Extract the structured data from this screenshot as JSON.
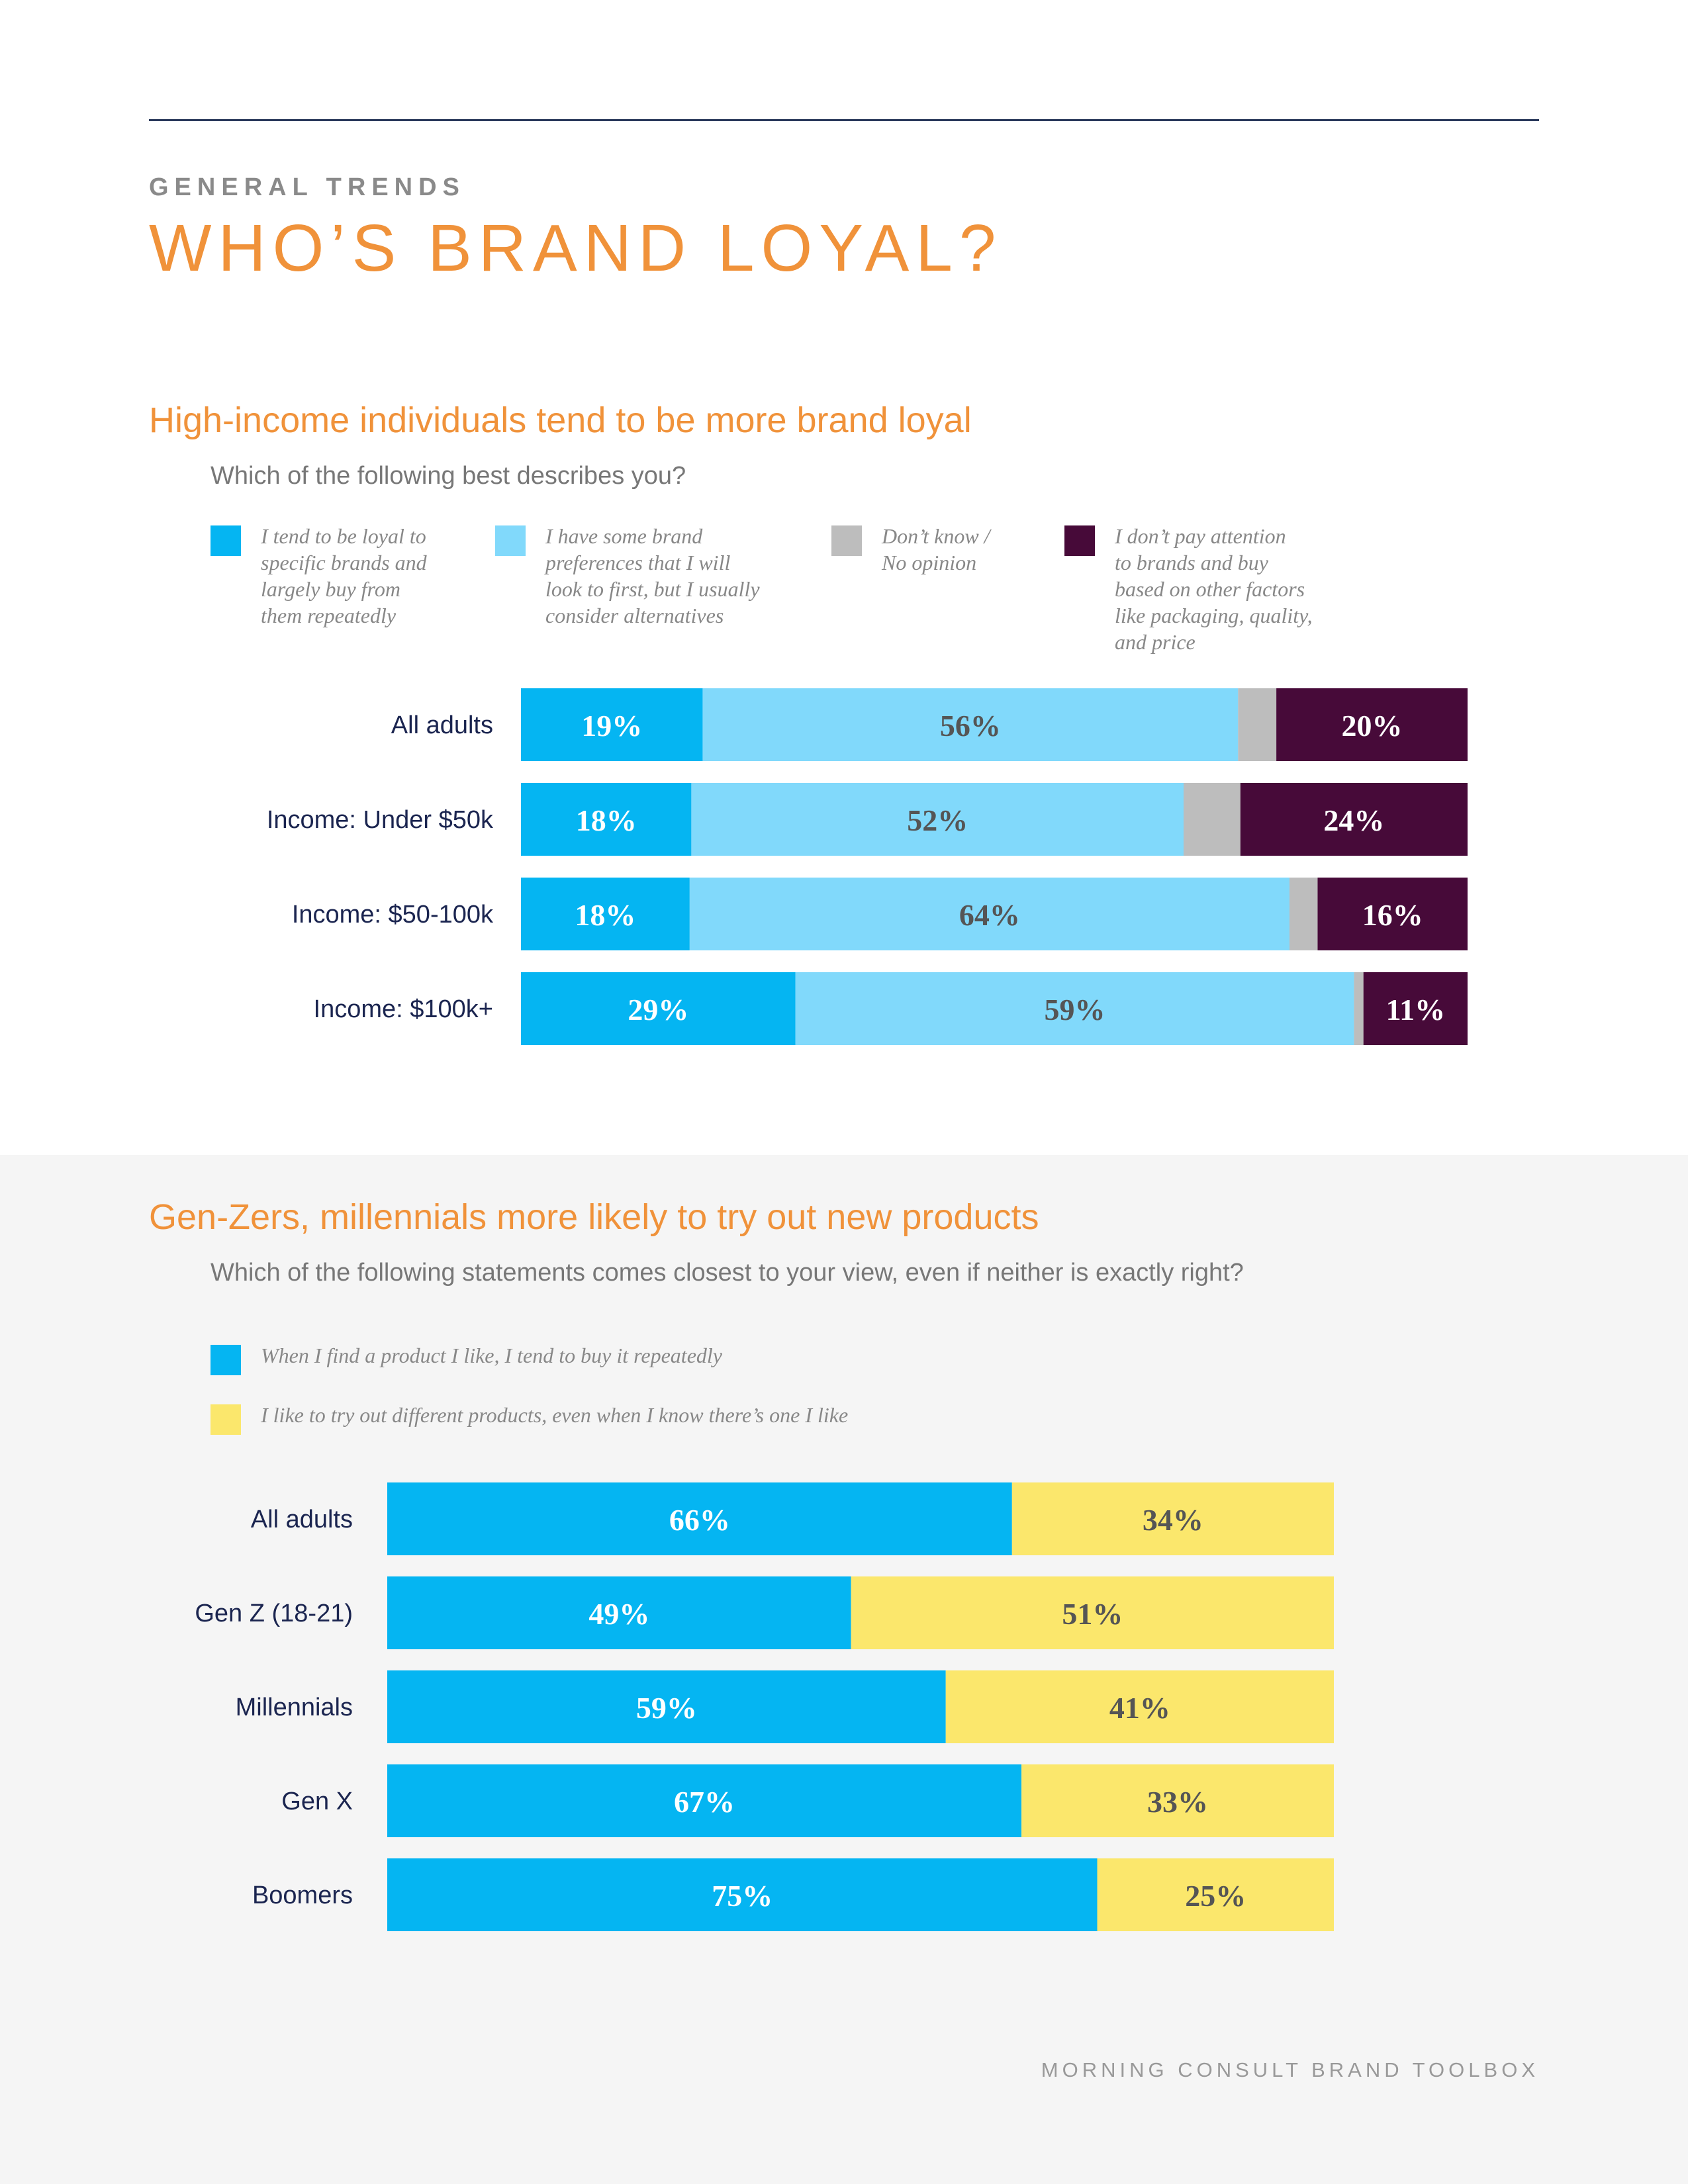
{
  "header": {
    "kicker": "GENERAL TRENDS",
    "title": "WHO’S BRAND LOYAL?"
  },
  "footer": {
    "text": "MORNING CONSULT BRAND TOOLBOX"
  },
  "colors": {
    "accent": "#f0923a",
    "navy": "#1b2550",
    "loyal": "#05b5f2",
    "some_pref": "#81d9fb",
    "dont_know": "#bdbdbd",
    "no_attention": "#470a39",
    "repeat": "#05b5f2",
    "try_new": "#fbe76c"
  },
  "chart_data": [
    {
      "type": "bar",
      "orientation": "horizontal",
      "stacked": true,
      "title": "High-income individuals tend to be more brand loyal",
      "subtitle": "Which of the following best describes you?",
      "categories": [
        "All adults",
        "Income: Under $50k",
        "Income: $50-100k",
        "Income: $100k+"
      ],
      "series": [
        {
          "name": "I tend to be loyal to specific brands and largely buy from them repeatedly",
          "values": [
            19,
            18,
            18,
            29
          ],
          "color": "#05b5f2",
          "label_color": "#ffffff"
        },
        {
          "name": "I have some brand preferences that I will look to first, but I usually consider alternatives",
          "values": [
            56,
            52,
            64,
            59
          ],
          "color": "#81d9fb",
          "label_color": "#555555"
        },
        {
          "name": "Don’t know / No opinion",
          "values": [
            4,
            6,
            3,
            1
          ],
          "color": "#bdbdbd",
          "label_color": "#555555",
          "hide_labels": true
        },
        {
          "name": "I don’t pay attention to brands and buy based on other factors like packaging, quality, and price",
          "values": [
            20,
            24,
            16,
            11
          ],
          "color": "#470a39",
          "label_color": "#ffffff"
        }
      ],
      "legend_lines": [
        [
          "I tend to be loyal to",
          "specific brands and",
          "largely buy from",
          "them repeatedly"
        ],
        [
          "I have some brand",
          "preferences that I will",
          "look to first, but I usually",
          "consider alternatives"
        ],
        [
          "Don’t know /",
          "No opinion"
        ],
        [
          "I don’t pay attention",
          "to brands and buy",
          "based on other factors",
          "like packaging, quality,",
          "and price"
        ]
      ],
      "legend_placement": "top",
      "unit": "%",
      "grid": false
    },
    {
      "type": "bar",
      "orientation": "horizontal",
      "stacked": true,
      "title": "Gen-Zers, millennials more likely to try out new products",
      "subtitle": "Which of the following statements comes closest to your view, even if neither is exactly right?",
      "categories": [
        "All adults",
        "Gen Z (18-21)",
        "Millennials",
        "Gen X",
        "Boomers"
      ],
      "series": [
        {
          "name": "When I find a product I like, I tend to buy it repeatedly",
          "values": [
            66,
            49,
            59,
            67,
            75
          ],
          "color": "#05b5f2",
          "label_color": "#ffffff"
        },
        {
          "name": "I like to try out different products, even when I know there’s one I like",
          "values": [
            34,
            51,
            41,
            33,
            25
          ],
          "color": "#fbe76c",
          "label_color": "#555555"
        }
      ],
      "legend_placement": "top",
      "unit": "%",
      "grid": false
    }
  ]
}
